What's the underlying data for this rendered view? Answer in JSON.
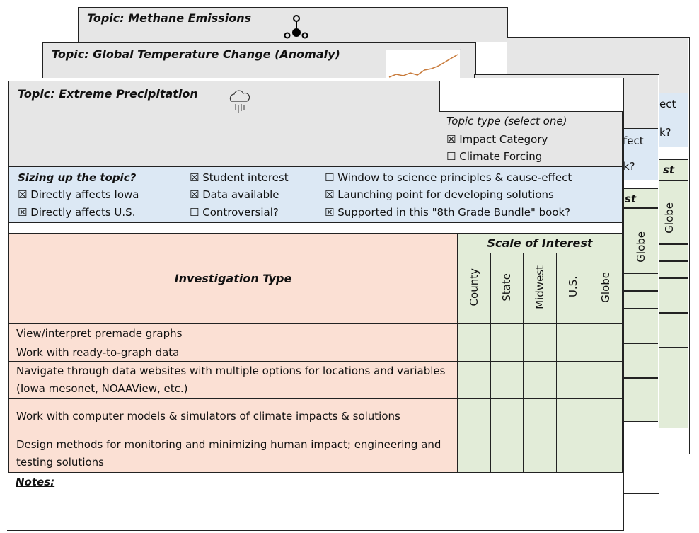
{
  "cards_back": [
    {
      "title": "Topic: Methane Emissions",
      "icon": "methane-molecule-icon",
      "partial_texts": [
        "ect",
        "k?",
        "st",
        "Globe"
      ]
    },
    {
      "title": "Topic: Global Temperature Change (Anomaly)",
      "icon": "temperature-graph-thumbnail",
      "partial_texts": [
        "fect",
        "k?",
        "st",
        "Globe"
      ]
    }
  ],
  "front": {
    "title": "Topic: Extreme Precipitation",
    "icon": "rain-cloud-icon",
    "topic_type": {
      "label": "Topic type (select one)",
      "options": [
        {
          "label": "Impact Category",
          "checked": true
        },
        {
          "label": "Climate Forcing",
          "checked": false
        }
      ]
    },
    "sizing": {
      "label": "Sizing up the topic?",
      "items": [
        {
          "label": "Directly affects Iowa",
          "checked": true
        },
        {
          "label": "Directly affects U.S.",
          "checked": true
        },
        {
          "label": "Student interest",
          "checked": true
        },
        {
          "label": "Data available",
          "checked": true
        },
        {
          "label": "Controversial?",
          "checked": false
        },
        {
          "label": "Window to science principles & cause-effect",
          "checked": false
        },
        {
          "label": "Launching point for developing solutions",
          "checked": true
        },
        {
          "label": "Supported in this \"8th Grade Bundle\" book?",
          "checked": true
        }
      ]
    },
    "table": {
      "investigation_header": "Investigation Type",
      "scale_header": "Scale of Interest",
      "scales": [
        "County",
        "State",
        "Midwest",
        "U.S.",
        "Globe"
      ],
      "rows": [
        "View/interpret premade graphs",
        "Work with ready-to-graph data",
        "Navigate through data websites with multiple options for locations and variables (Iowa mesonet, NOAAView, etc.)",
        "Work with computer models & simulators of climate impacts & solutions",
        "Design methods for monitoring and minimizing human impact; engineering and testing solutions"
      ]
    },
    "notes_label": "Notes:"
  },
  "checkbox": {
    "checked": "☒",
    "unchecked": "☐"
  }
}
